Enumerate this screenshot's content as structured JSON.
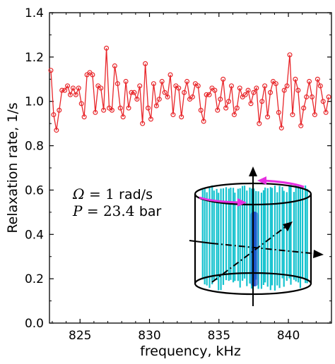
{
  "chart_data": {
    "type": "line",
    "xlabel": "frequency, kHz",
    "ylabel": "Relaxation rate, 1/s",
    "xlim": [
      822.8,
      843.1
    ],
    "ylim": [
      0.0,
      1.4
    ],
    "x_ticks": [
      825,
      830,
      835,
      840
    ],
    "y_ticks": [
      0.0,
      0.2,
      0.4,
      0.6,
      0.8,
      1.0,
      1.2,
      1.4
    ],
    "x_tick_labels": [
      "825",
      "830",
      "835",
      "840"
    ],
    "y_tick_labels": [
      "0.0",
      "0.2",
      "0.4",
      "0.6",
      "0.8",
      "1.0",
      "1.2",
      "1.4"
    ],
    "grid": false,
    "series": [
      {
        "color": "#e8262a",
        "marker": "open-circle",
        "x": [
          822.9,
          823.1,
          823.3,
          823.5,
          823.7,
          823.9,
          824.1,
          824.3,
          824.5,
          824.7,
          824.9,
          825.1,
          825.3,
          825.5,
          825.7,
          825.9,
          826.1,
          826.3,
          826.5,
          826.7,
          826.9,
          827.1,
          827.3,
          827.5,
          827.7,
          827.9,
          828.1,
          828.3,
          828.5,
          828.7,
          828.9,
          829.1,
          829.3,
          829.5,
          829.7,
          829.9,
          830.1,
          830.3,
          830.5,
          830.7,
          830.9,
          831.1,
          831.3,
          831.5,
          831.7,
          831.9,
          832.1,
          832.3,
          832.5,
          832.7,
          832.9,
          833.1,
          833.3,
          833.5,
          833.7,
          833.9,
          834.1,
          834.3,
          834.5,
          834.7,
          834.9,
          835.1,
          835.3,
          835.5,
          835.7,
          835.9,
          836.1,
          836.3,
          836.5,
          836.7,
          836.9,
          837.1,
          837.3,
          837.5,
          837.7,
          837.9,
          838.1,
          838.3,
          838.5,
          838.7,
          838.9,
          839.1,
          839.3,
          839.5,
          839.7,
          839.9,
          840.1,
          840.3,
          840.5,
          840.7,
          840.9,
          841.1,
          841.3,
          841.5,
          841.7,
          841.9,
          842.1,
          842.3,
          842.5,
          842.7,
          842.9
        ],
        "y": [
          1.14,
          0.94,
          0.87,
          0.96,
          1.05,
          1.05,
          1.07,
          1.03,
          1.06,
          1.03,
          1.06,
          0.99,
          0.93,
          1.12,
          1.13,
          1.12,
          0.95,
          1.07,
          1.06,
          0.96,
          1.24,
          0.97,
          0.96,
          1.16,
          1.08,
          0.97,
          0.93,
          1.09,
          0.97,
          1.04,
          1.04,
          1.01,
          1.07,
          0.9,
          1.17,
          0.97,
          0.92,
          1.08,
          0.98,
          1.01,
          1.09,
          1.04,
          1.02,
          1.12,
          0.94,
          1.07,
          1.06,
          0.93,
          1.04,
          1.09,
          1.01,
          1.02,
          1.08,
          1.07,
          0.96,
          0.91,
          1.03,
          1.03,
          1.06,
          1.05,
          0.96,
          1.01,
          1.1,
          0.97,
          1.0,
          1.07,
          0.94,
          0.97,
          1.06,
          1.02,
          1.03,
          1.05,
          0.99,
          1.04,
          1.06,
          0.9,
          1.0,
          1.07,
          0.93,
          1.04,
          1.09,
          1.08,
          0.95,
          0.88,
          1.05,
          1.07,
          1.21,
          0.94,
          1.1,
          1.05,
          0.89,
          0.97,
          1.02,
          1.09,
          1.02,
          0.94,
          1.1,
          1.07,
          1.0,
          0.95,
          1.02
        ]
      }
    ],
    "annotations": [
      {
        "symbol": "Ω",
        "relation": " = 1 ",
        "unit": "rad/s"
      },
      {
        "symbol": "P",
        "relation": " = 23.4 ",
        "unit": "bar"
      }
    ]
  },
  "colors": {
    "series": "#e8262a",
    "cylinder": "#000000",
    "vortex_lines": "#17c3cf",
    "central_vortex": "#1747c9",
    "rotation_arrows": "#e62fe0"
  }
}
